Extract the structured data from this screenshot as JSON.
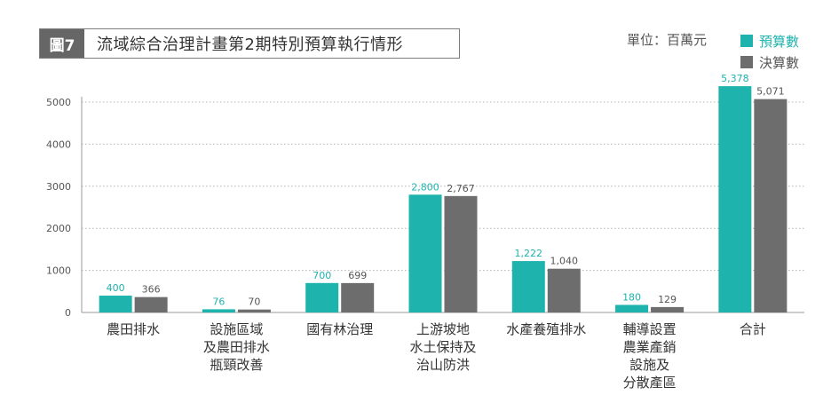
{
  "header": {
    "figure_label": "圖7",
    "title": "流域綜合治理計畫第2期特別預算執行情形",
    "unit": "單位：百萬元"
  },
  "colors": {
    "budget": "#1fb3ad",
    "actual": "#6d6d6d",
    "figure_label_bg": "#666666"
  },
  "chart_data": {
    "type": "bar",
    "categories": [
      [
        "農田排水"
      ],
      [
        "設施區域",
        "及農田排水",
        "瓶頸改善"
      ],
      [
        "國有林治理"
      ],
      [
        "上游坡地",
        "水土保持及",
        "治山防洪"
      ],
      [
        "水產養殖排水"
      ],
      [
        "輔導設置",
        "農業產銷",
        "設施及",
        "分散產區"
      ],
      [
        "合計"
      ]
    ],
    "series": [
      {
        "name": "預算數",
        "values": [
          400,
          76,
          700,
          2800,
          1222,
          180,
          5378
        ],
        "labels": [
          "400",
          "76",
          "700",
          "2,800",
          "1,222",
          "180",
          "5,378"
        ]
      },
      {
        "name": "決算數",
        "values": [
          366,
          70,
          699,
          2767,
          1040,
          129,
          5071
        ],
        "labels": [
          "366",
          "70",
          "699",
          "2,767",
          "1,040",
          "129",
          "5,071"
        ]
      }
    ],
    "yticks": [
      0,
      1000,
      2000,
      3000,
      4000,
      5000
    ],
    "ylim": [
      0,
      5000
    ],
    "grid": true,
    "legend": "top-right"
  }
}
